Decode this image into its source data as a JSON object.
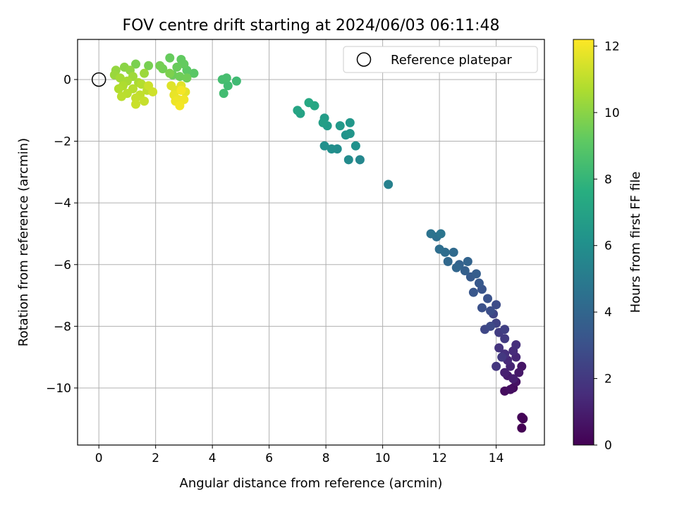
{
  "chart_data": {
    "type": "scatter",
    "title": "FOV centre drift starting at 2024/06/03 06:11:48",
    "xlabel": "Angular distance from reference (arcmin)",
    "ylabel": "Rotation from reference (arcmin)",
    "xlim": [
      -0.75,
      15.7
    ],
    "ylim": [
      -11.85,
      1.3
    ],
    "xticks": [
      0,
      2,
      4,
      6,
      8,
      10,
      12,
      14
    ],
    "yticks": [
      0,
      -2,
      -4,
      -6,
      -8,
      -10
    ],
    "grid": true,
    "legend": {
      "position": "top-right",
      "entries": [
        "Reference platepar"
      ]
    },
    "reference_point": {
      "x": 0,
      "y": 0,
      "label": "Reference platepar"
    },
    "colorbar": {
      "label": "Hours from first FF file",
      "range": [
        0,
        12.2
      ],
      "ticks": [
        0,
        2,
        4,
        6,
        8,
        10,
        12
      ],
      "colormap": "viridis"
    },
    "points": [
      {
        "x": 14.9,
        "y": -11.3,
        "c": 0.0
      },
      {
        "x": 14.95,
        "y": -11.0,
        "c": 0.05
      },
      {
        "x": 14.9,
        "y": -10.95,
        "c": 0.1
      },
      {
        "x": 14.6,
        "y": -10.0,
        "c": 0.3
      },
      {
        "x": 14.3,
        "y": -10.1,
        "c": 0.4
      },
      {
        "x": 14.5,
        "y": -10.05,
        "c": 0.5
      },
      {
        "x": 14.7,
        "y": -9.8,
        "c": 0.6
      },
      {
        "x": 14.9,
        "y": -9.3,
        "c": 0.7
      },
      {
        "x": 14.8,
        "y": -9.5,
        "c": 0.8
      },
      {
        "x": 14.4,
        "y": -9.6,
        "c": 0.9
      },
      {
        "x": 14.6,
        "y": -9.7,
        "c": 1.0
      },
      {
        "x": 14.3,
        "y": -9.5,
        "c": 1.1
      },
      {
        "x": 14.5,
        "y": -9.3,
        "c": 1.2
      },
      {
        "x": 14.7,
        "y": -9.0,
        "c": 1.3
      },
      {
        "x": 14.4,
        "y": -9.1,
        "c": 1.4
      },
      {
        "x": 14.6,
        "y": -8.8,
        "c": 1.5
      },
      {
        "x": 14.7,
        "y": -8.6,
        "c": 1.6
      },
      {
        "x": 14.3,
        "y": -8.9,
        "c": 1.7
      },
      {
        "x": 14.1,
        "y": -8.7,
        "c": 1.8
      },
      {
        "x": 14.0,
        "y": -9.3,
        "c": 1.9
      },
      {
        "x": 14.2,
        "y": -9.0,
        "c": 2.0
      },
      {
        "x": 14.3,
        "y": -8.4,
        "c": 2.1
      },
      {
        "x": 14.1,
        "y": -8.2,
        "c": 2.2
      },
      {
        "x": 14.3,
        "y": -8.1,
        "c": 2.3
      },
      {
        "x": 14.0,
        "y": -7.9,
        "c": 2.4
      },
      {
        "x": 13.9,
        "y": -7.6,
        "c": 2.5
      },
      {
        "x": 13.6,
        "y": -8.1,
        "c": 2.6
      },
      {
        "x": 13.8,
        "y": -8.0,
        "c": 2.7
      },
      {
        "x": 14.0,
        "y": -7.3,
        "c": 2.8
      },
      {
        "x": 13.8,
        "y": -7.5,
        "c": 2.9
      },
      {
        "x": 13.5,
        "y": -7.4,
        "c": 3.0
      },
      {
        "x": 13.7,
        "y": -7.1,
        "c": 3.1
      },
      {
        "x": 13.5,
        "y": -6.8,
        "c": 3.2
      },
      {
        "x": 13.2,
        "y": -6.9,
        "c": 3.3
      },
      {
        "x": 13.4,
        "y": -6.6,
        "c": 3.4
      },
      {
        "x": 13.1,
        "y": -6.4,
        "c": 3.5
      },
      {
        "x": 13.3,
        "y": -6.3,
        "c": 3.6
      },
      {
        "x": 12.9,
        "y": -6.2,
        "c": 3.7
      },
      {
        "x": 12.7,
        "y": -6.0,
        "c": 3.8
      },
      {
        "x": 13.0,
        "y": -5.9,
        "c": 3.9
      },
      {
        "x": 12.6,
        "y": -6.1,
        "c": 4.0
      },
      {
        "x": 12.3,
        "y": -5.9,
        "c": 4.1
      },
      {
        "x": 12.5,
        "y": -5.6,
        "c": 4.2
      },
      {
        "x": 12.2,
        "y": -5.6,
        "c": 4.3
      },
      {
        "x": 12.0,
        "y": -5.5,
        "c": 4.4
      },
      {
        "x": 11.9,
        "y": -5.1,
        "c": 4.5
      },
      {
        "x": 11.7,
        "y": -5.0,
        "c": 4.6
      },
      {
        "x": 12.05,
        "y": -5.0,
        "c": 4.7
      },
      {
        "x": 10.2,
        "y": -3.4,
        "c": 5.3
      },
      {
        "x": 9.2,
        "y": -2.6,
        "c": 5.6
      },
      {
        "x": 8.8,
        "y": -2.6,
        "c": 5.8
      },
      {
        "x": 8.4,
        "y": -2.25,
        "c": 5.9
      },
      {
        "x": 8.2,
        "y": -2.25,
        "c": 6.0
      },
      {
        "x": 7.95,
        "y": -2.15,
        "c": 6.05
      },
      {
        "x": 9.05,
        "y": -2.15,
        "c": 6.1
      },
      {
        "x": 8.7,
        "y": -1.8,
        "c": 6.2
      },
      {
        "x": 8.85,
        "y": -1.75,
        "c": 6.3
      },
      {
        "x": 8.85,
        "y": -1.4,
        "c": 6.4
      },
      {
        "x": 8.5,
        "y": -1.5,
        "c": 6.5
      },
      {
        "x": 8.05,
        "y": -1.5,
        "c": 6.6
      },
      {
        "x": 7.95,
        "y": -1.25,
        "c": 6.7
      },
      {
        "x": 7.9,
        "y": -1.4,
        "c": 6.8
      },
      {
        "x": 7.1,
        "y": -1.1,
        "c": 7.0
      },
      {
        "x": 7.0,
        "y": -1.0,
        "c": 7.1
      },
      {
        "x": 7.6,
        "y": -0.85,
        "c": 7.2
      },
      {
        "x": 7.4,
        "y": -0.75,
        "c": 7.3
      },
      {
        "x": 4.85,
        "y": -0.05,
        "c": 8.3
      },
      {
        "x": 4.55,
        "y": -0.2,
        "c": 8.35
      },
      {
        "x": 4.4,
        "y": -0.45,
        "c": 8.4
      },
      {
        "x": 4.35,
        "y": 0.0,
        "c": 8.45
      },
      {
        "x": 4.5,
        "y": 0.05,
        "c": 8.5
      },
      {
        "x": 3.35,
        "y": 0.2,
        "c": 9.0
      },
      {
        "x": 3.1,
        "y": 0.3,
        "c": 9.1
      },
      {
        "x": 2.9,
        "y": 0.65,
        "c": 9.2
      },
      {
        "x": 3.0,
        "y": 0.5,
        "c": 9.25
      },
      {
        "x": 2.5,
        "y": 0.7,
        "c": 9.3
      },
      {
        "x": 2.75,
        "y": 0.4,
        "c": 9.35
      },
      {
        "x": 2.6,
        "y": 0.15,
        "c": 9.4
      },
      {
        "x": 2.85,
        "y": 0.1,
        "c": 9.45
      },
      {
        "x": 3.1,
        "y": 0.05,
        "c": 9.5
      },
      {
        "x": 2.25,
        "y": 0.35,
        "c": 9.55
      },
      {
        "x": 2.15,
        "y": 0.45,
        "c": 9.6
      },
      {
        "x": 1.75,
        "y": 0.45,
        "c": 9.65
      },
      {
        "x": 1.3,
        "y": 0.5,
        "c": 9.7
      },
      {
        "x": 2.5,
        "y": 0.2,
        "c": 9.75
      },
      {
        "x": 0.9,
        "y": 0.4,
        "c": 10.0
      },
      {
        "x": 1.1,
        "y": 0.3,
        "c": 10.1
      },
      {
        "x": 0.6,
        "y": 0.3,
        "c": 10.2
      },
      {
        "x": 0.55,
        "y": 0.15,
        "c": 10.3
      },
      {
        "x": 1.6,
        "y": 0.2,
        "c": 10.35
      },
      {
        "x": 1.2,
        "y": 0.1,
        "c": 10.4
      },
      {
        "x": 0.75,
        "y": 0.05,
        "c": 10.5
      },
      {
        "x": 1.0,
        "y": -0.05,
        "c": 10.55
      },
      {
        "x": 1.4,
        "y": -0.1,
        "c": 10.6
      },
      {
        "x": 0.85,
        "y": -0.2,
        "c": 10.7
      },
      {
        "x": 0.7,
        "y": -0.3,
        "c": 10.75
      },
      {
        "x": 1.5,
        "y": -0.15,
        "c": 10.8
      },
      {
        "x": 1.2,
        "y": -0.3,
        "c": 10.85
      },
      {
        "x": 1.0,
        "y": -0.45,
        "c": 10.9
      },
      {
        "x": 0.8,
        "y": -0.55,
        "c": 10.95
      },
      {
        "x": 1.7,
        "y": -0.35,
        "c": 11.0
      },
      {
        "x": 1.45,
        "y": -0.5,
        "c": 11.05
      },
      {
        "x": 1.3,
        "y": -0.6,
        "c": 11.1
      },
      {
        "x": 1.6,
        "y": -0.7,
        "c": 11.15
      },
      {
        "x": 1.3,
        "y": -0.8,
        "c": 11.2
      },
      {
        "x": 1.75,
        "y": -0.2,
        "c": 11.25
      },
      {
        "x": 1.9,
        "y": -0.4,
        "c": 11.3
      },
      {
        "x": 2.55,
        "y": -0.2,
        "c": 11.6
      },
      {
        "x": 2.7,
        "y": -0.35,
        "c": 11.65
      },
      {
        "x": 2.9,
        "y": -0.2,
        "c": 11.7
      },
      {
        "x": 3.05,
        "y": -0.4,
        "c": 11.75
      },
      {
        "x": 2.65,
        "y": -0.5,
        "c": 11.8
      },
      {
        "x": 2.8,
        "y": -0.65,
        "c": 11.85
      },
      {
        "x": 2.7,
        "y": -0.7,
        "c": 11.9
      },
      {
        "x": 3.0,
        "y": -0.65,
        "c": 11.95
      },
      {
        "x": 2.85,
        "y": -0.85,
        "c": 12.0
      },
      {
        "x": 2.9,
        "y": -0.35,
        "c": 12.05
      }
    ]
  }
}
